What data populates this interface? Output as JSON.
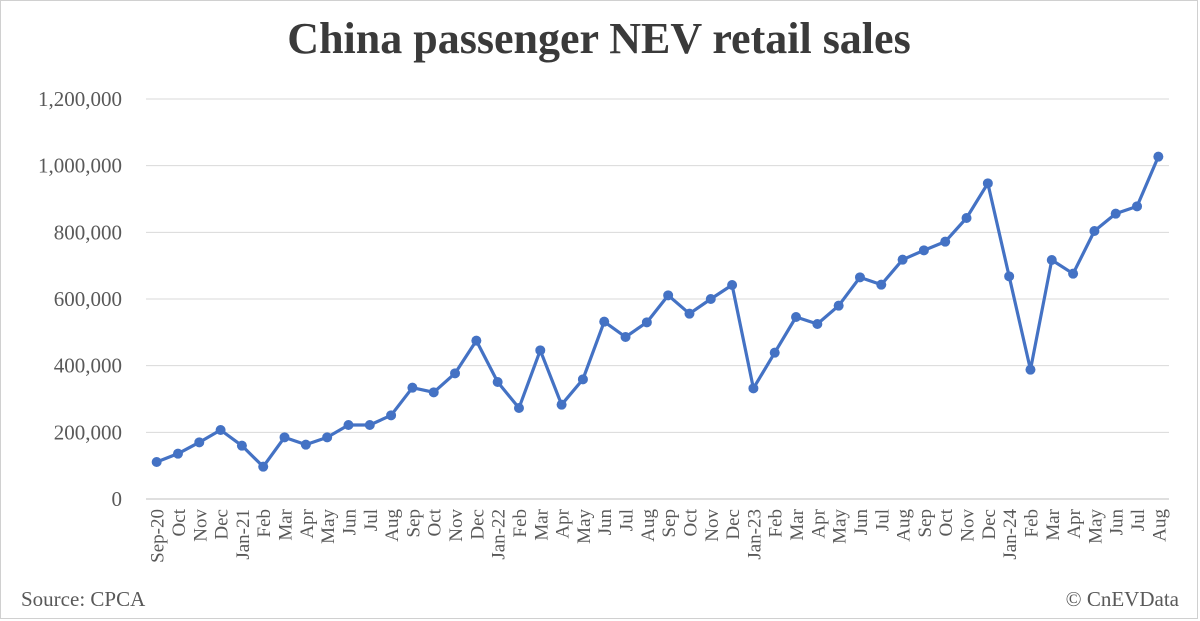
{
  "chart_data": {
    "type": "line",
    "title": "China passenger NEV retail sales",
    "xlabel": "",
    "ylabel": "",
    "ylim": [
      0,
      1200000
    ],
    "yticks": [
      "0",
      "200,000",
      "400,000",
      "600,000",
      "800,000",
      "1,000,000",
      "1,200,000"
    ],
    "grid": true,
    "line_color": "#4472C4",
    "categories": [
      "Sep-20",
      "Oct",
      "Nov",
      "Dec",
      "Jan-21",
      "Feb",
      "Mar",
      "Apr",
      "May",
      "Jun",
      "Jul",
      "Aug",
      "Sep",
      "Oct",
      "Nov",
      "Dec",
      "Jan-22",
      "Feb",
      "Mar",
      "Apr",
      "May",
      "Jun",
      "Jul",
      "Aug",
      "Sep",
      "Oct",
      "Nov",
      "Dec",
      "Jan-23",
      "Feb",
      "Mar",
      "Apr",
      "May",
      "Jun",
      "Jul",
      "Aug",
      "Sep",
      "Oct",
      "Nov",
      "Dec",
      "Jan-24",
      "Feb",
      "Mar",
      "Apr",
      "May",
      "Jun",
      "Jul",
      "Aug"
    ],
    "values": [
      111000,
      136000,
      170000,
      207000,
      160000,
      97000,
      185000,
      163000,
      185000,
      222000,
      222000,
      251000,
      334000,
      320000,
      377000,
      475000,
      351000,
      273000,
      446000,
      283000,
      359000,
      532000,
      486000,
      530000,
      611000,
      556000,
      600000,
      642000,
      332000,
      439000,
      546000,
      525000,
      580000,
      665000,
      643000,
      718000,
      746000,
      772000,
      843000,
      947000,
      668000,
      388000,
      717000,
      676000,
      804000,
      856000,
      878000,
      1027000
    ]
  },
  "footer": {
    "source": "Source: CPCA",
    "copyright": "© CnEVData"
  }
}
